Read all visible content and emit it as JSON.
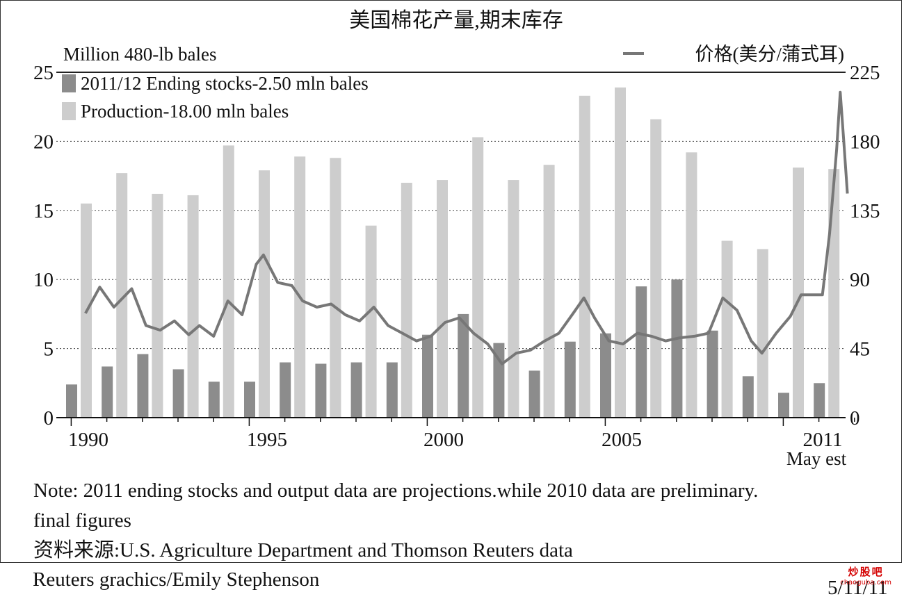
{
  "chart_data": {
    "type": "bar",
    "title": "美国棉花产量,期末库存",
    "left_axis_label": "Million 480-lb bales",
    "right_axis_label": "价格(美分/蒲式耳)",
    "left_ylim": [
      0,
      25
    ],
    "left_ticks": [
      "0",
      "5",
      "10",
      "15",
      "20",
      "25"
    ],
    "right_ylim": [
      0,
      225
    ],
    "right_ticks": [
      "0",
      "45",
      "90",
      "135",
      "180",
      "225"
    ],
    "x_ticks": [
      "1990",
      "1995",
      "2000",
      "2005",
      "2011"
    ],
    "x_sub_label": "May est",
    "categories": [
      "1990",
      "1991",
      "1992",
      "1993",
      "1994",
      "1995",
      "1996",
      "1997",
      "1998",
      "1999",
      "2000",
      "2001",
      "2002",
      "2003",
      "2004",
      "2005",
      "2006",
      "2007",
      "2008",
      "2009",
      "2010",
      "2011"
    ],
    "series": [
      {
        "name": "2011/12 Ending stocks-2.50 mln bales",
        "color": "#8c8c8c",
        "values": [
          2.4,
          3.7,
          4.6,
          3.5,
          2.6,
          2.6,
          4.0,
          3.9,
          4.0,
          4.0,
          6.0,
          7.5,
          5.4,
          3.4,
          5.5,
          6.1,
          9.5,
          10.0,
          6.3,
          3.0,
          1.8,
          2.5
        ]
      },
      {
        "name": "Production-18.00 mln bales",
        "color": "#cdcdcd",
        "values": [
          15.5,
          17.7,
          16.2,
          16.1,
          19.7,
          17.9,
          18.9,
          18.8,
          13.9,
          17.0,
          17.2,
          20.3,
          17.2,
          18.3,
          23.3,
          23.9,
          21.6,
          19.2,
          12.8,
          12.2,
          18.1,
          18.0
        ]
      },
      {
        "name": "价格(美分/蒲式耳)",
        "color": "#777777",
        "axis": "right",
        "x": [
          1989.9,
          1990.3,
          1990.7,
          1991.2,
          1991.6,
          1992.0,
          1992.4,
          1992.8,
          1993.1,
          1993.5,
          1993.9,
          1994.3,
          1994.7,
          1994.9,
          1995.3,
          1995.7,
          1996.0,
          1996.4,
          1996.8,
          1997.2,
          1997.6,
          1998.0,
          1998.4,
          1998.8,
          1999.2,
          1999.6,
          2000.0,
          2000.4,
          2000.8,
          2001.2,
          2001.6,
          2002.0,
          2002.4,
          2002.8,
          2003.2,
          2003.6,
          2003.9,
          2004.2,
          2004.6,
          2005.0,
          2005.4,
          2005.8,
          2006.2,
          2006.6,
          2007.0,
          2007.4,
          2007.8,
          2008.2,
          2008.6,
          2008.9,
          2009.3,
          2009.7,
          2010.0,
          2010.3,
          2010.6,
          2010.8,
          2011.0,
          2011.1,
          2011.2,
          2011.3
        ],
        "values": [
          68,
          85,
          72,
          84,
          60,
          57,
          63,
          54,
          60,
          53,
          76,
          67,
          100,
          106,
          88,
          86,
          76,
          72,
          74,
          67,
          63,
          72,
          60,
          55,
          50,
          53,
          62,
          65,
          55,
          48,
          35,
          42,
          44,
          50,
          55,
          68,
          78,
          65,
          50,
          48,
          55,
          53,
          50,
          52,
          53,
          55,
          78,
          70,
          50,
          42,
          55,
          66,
          80,
          80,
          80,
          120,
          175,
          212,
          180,
          146
        ]
      }
    ]
  },
  "note": "Note: 2011 ending stocks and output data are projections.while 2010 data are preliminary.",
  "note_line2": "final figures",
  "source": "资料来源:U.S. Agriculture Department and Thomson Reuters data",
  "credit": "Reuters grachics/Emily Stephenson",
  "date_partial": "5/11/11",
  "watermark_cn": "炒股吧",
  "watermark_en": "chaoguba.com"
}
